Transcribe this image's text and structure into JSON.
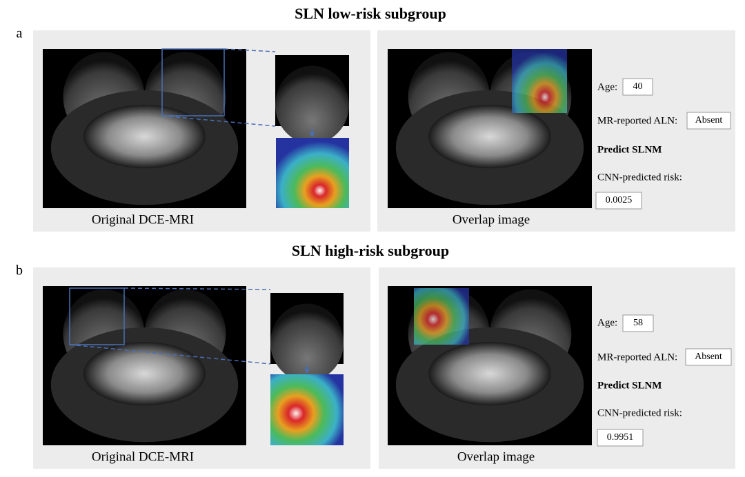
{
  "panels": [
    {
      "label": "a",
      "title": "SLN low-risk subgroup",
      "left_caption": "Original DCE-MRI",
      "right_caption": "Overlap image",
      "age_label": "Age:",
      "age": 40,
      "aln_label": "MR-reported ALN:",
      "aln": "Absent",
      "predict": "Predict SLNM",
      "risk_label": "CNN-predicted  risk:",
      "risk": 0.0025
    },
    {
      "label": "b",
      "title": "SLN high-risk subgroup",
      "left_caption": "Original DCE-MRI",
      "right_caption": "Overlap image",
      "age_label": "Age:",
      "age": 58,
      "aln_label": "MR-reported ALN:",
      "aln": "Absent",
      "predict": "Predict SLNM",
      "risk_label": "CNN-predicted risk:",
      "risk": 0.9951
    }
  ]
}
